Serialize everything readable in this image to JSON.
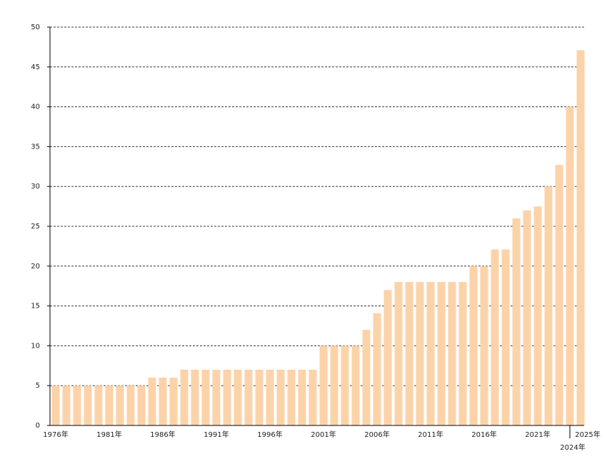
{
  "chart_data": {
    "type": "bar",
    "categories": [
      "1976年",
      null,
      null,
      null,
      null,
      "1981年",
      null,
      null,
      null,
      null,
      "1986年",
      null,
      null,
      null,
      null,
      "1991年",
      null,
      null,
      null,
      null,
      "1996年",
      null,
      null,
      null,
      null,
      "2001年",
      null,
      null,
      null,
      null,
      "2006年",
      null,
      null,
      null,
      null,
      "2011年",
      null,
      null,
      null,
      null,
      "2016年",
      null,
      null,
      null,
      null,
      "2021年",
      null,
      null,
      "2024年",
      "2025年"
    ],
    "values": [
      5,
      5,
      5,
      5,
      5,
      5,
      5,
      5,
      5,
      6,
      6,
      6,
      7,
      7,
      7,
      7,
      7,
      7,
      7,
      7,
      7,
      7,
      7,
      7,
      7,
      10,
      10,
      10,
      10,
      12,
      14.1,
      17,
      18,
      18,
      18,
      18,
      18,
      18,
      18,
      20,
      20,
      22.1,
      22.1,
      26,
      27,
      27.5,
      30,
      32.7,
      40,
      47.1
    ],
    "color": "#fcd3a8",
    "ylim": [
      0,
      50
    ],
    "yticks": [
      0,
      5,
      10,
      15,
      20,
      25,
      30,
      35,
      40,
      45,
      50
    ],
    "grid": true
  }
}
